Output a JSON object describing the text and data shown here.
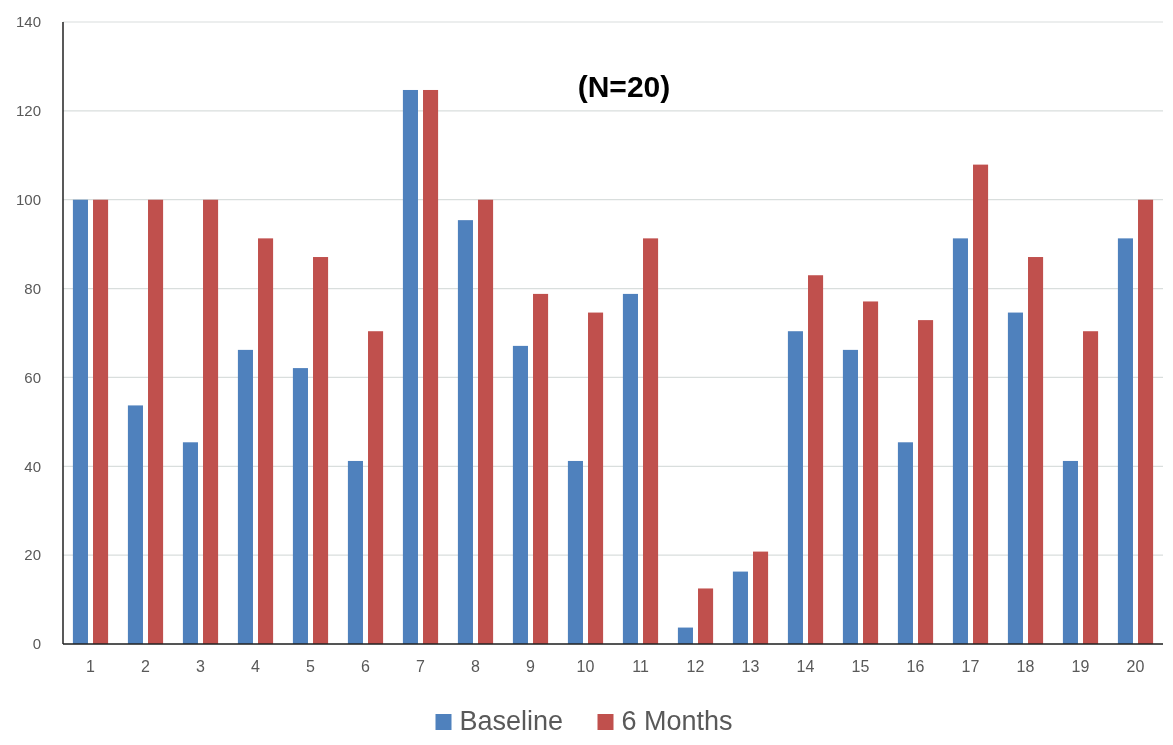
{
  "chart_data": {
    "type": "bar",
    "title": "(N=20)",
    "categories": [
      "1",
      "2",
      "3",
      "4",
      "5",
      "6",
      "7",
      "8",
      "9",
      "10",
      "11",
      "12",
      "13",
      "14",
      "15",
      "16",
      "17",
      "18",
      "19",
      "20"
    ],
    "series": [
      {
        "name": "Baseline",
        "color": "#4f81bd",
        "values": [
          100,
          53.7,
          45.4,
          66.2,
          62.1,
          41.2,
          124.7,
          95.4,
          67.1,
          41.2,
          78.8,
          3.7,
          16.3,
          70.4,
          66.2,
          45.4,
          91.3,
          74.6,
          41.2,
          91.3
        ]
      },
      {
        "name": "6 Months",
        "color": "#c0504d",
        "values": [
          100,
          100,
          100,
          91.3,
          87.1,
          70.4,
          124.7,
          100,
          78.8,
          74.6,
          91.3,
          12.5,
          20.8,
          83.0,
          77.1,
          72.9,
          107.9,
          87.1,
          70.4,
          100
        ]
      }
    ],
    "ylim": [
      0,
      140
    ],
    "yticks": [
      0,
      20,
      40,
      60,
      80,
      100,
      120,
      140
    ],
    "grid": "y",
    "legend": "bottom"
  }
}
